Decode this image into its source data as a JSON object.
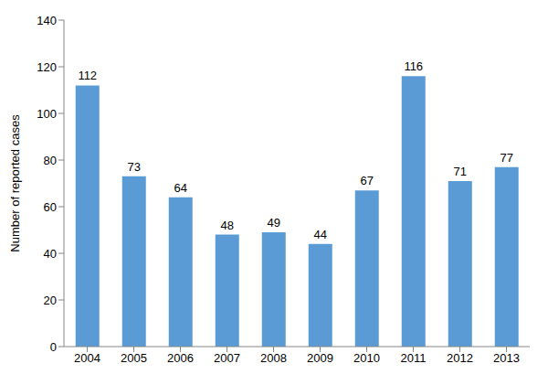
{
  "chart_data": {
    "type": "bar",
    "categories": [
      "2004",
      "2005",
      "2006",
      "2007",
      "2008",
      "2009",
      "2010",
      "2011",
      "2012",
      "2013"
    ],
    "values": [
      112,
      73,
      64,
      48,
      49,
      44,
      67,
      116,
      71,
      77
    ],
    "color": "#5b9bd5",
    "ylim": [
      0,
      140
    ],
    "yticks": [
      0,
      20,
      40,
      60,
      80,
      100,
      120,
      140
    ],
    "ylabel": "Number of reported cases",
    "data_labels": true,
    "grid": false
  }
}
